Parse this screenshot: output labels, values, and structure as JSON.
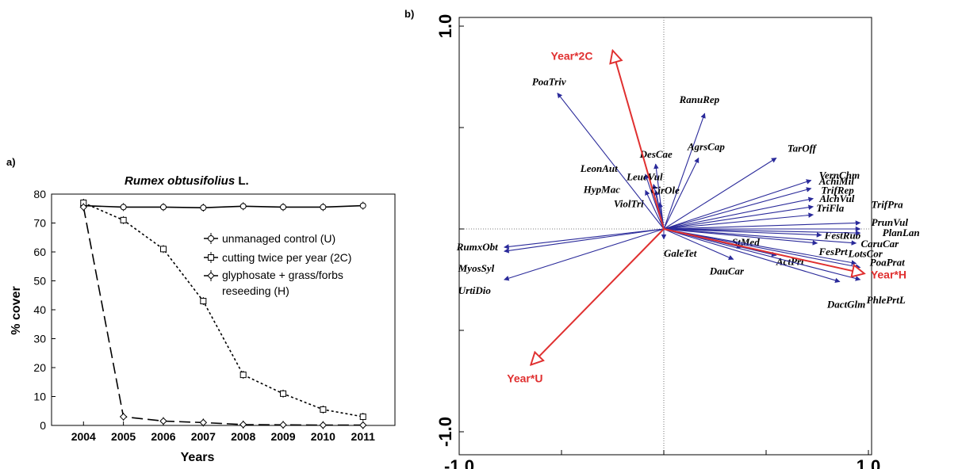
{
  "panel_a_label": "a)",
  "panel_b_label": "b)",
  "chart_data": [
    {
      "type": "line",
      "title_italic": "Rumex obtusifolius",
      "title_suffix": " L.",
      "xlabel": "Years",
      "ylabel": "% cover",
      "x": [
        2004,
        2005,
        2006,
        2007,
        2008,
        2009,
        2010,
        2011
      ],
      "xlim": [
        2003.2,
        2011.8
      ],
      "ylim": [
        0,
        80
      ],
      "yticks": [
        0,
        10,
        20,
        30,
        40,
        50,
        60,
        70,
        80
      ],
      "legend_position": "top-right",
      "series": [
        {
          "name": "unmanaged control (U)",
          "style": "solid",
          "marker": "circle",
          "values": [
            76,
            75.5,
            75.5,
            75.3,
            75.8,
            75.5,
            75.5,
            76
          ]
        },
        {
          "name": "cutting twice per year (2C)",
          "style": "dotted",
          "marker": "square",
          "values": [
            77,
            71,
            61,
            43,
            17.5,
            11,
            5.5,
            3
          ]
        },
        {
          "name": "glyphosate + grass/forbs",
          "name_line2": "reseeding (H)",
          "style": "dashed",
          "marker": "diamond",
          "values": [
            75.5,
            3,
            1.5,
            1,
            0.3,
            0.2,
            0.1,
            0.1
          ]
        }
      ]
    },
    {
      "type": "biplot",
      "xlim": [
        -1.0,
        1.0
      ],
      "ylim": [
        -1.0,
        1.0
      ],
      "xtick_labels": [
        "-1.0",
        "1.0"
      ],
      "ytick_labels": [
        "-1.0",
        "1.0"
      ],
      "env_color": "#e03030",
      "species_color": "#2a2a9a",
      "env_arrows": [
        {
          "label": "Year*2C",
          "x": -0.25,
          "y": 0.88
        },
        {
          "label": "Year*U",
          "x": -0.65,
          "y": -0.67
        },
        {
          "label": "Year*H",
          "x": 0.98,
          "y": -0.22
        }
      ],
      "species": [
        {
          "label": "PoaTriv",
          "x": -0.52,
          "y": 0.67
        },
        {
          "label": "RanuRep",
          "x": 0.2,
          "y": 0.57
        },
        {
          "label": "AgrsCap",
          "x": 0.17,
          "y": 0.35
        },
        {
          "label": "TarOff",
          "x": 0.55,
          "y": 0.35
        },
        {
          "label": "DesCae",
          "x": -0.04,
          "y": 0.32
        },
        {
          "label": "LeonAut",
          "x": -0.09,
          "y": 0.27
        },
        {
          "label": "LeucVul",
          "x": -0.05,
          "y": 0.22
        },
        {
          "label": "HypMac",
          "x": -0.09,
          "y": 0.19
        },
        {
          "label": "CirOle",
          "x": -0.04,
          "y": 0.19
        },
        {
          "label": "ViolTri",
          "x": -0.02,
          "y": 0.13
        },
        {
          "label": "VernChm",
          "x": 0.72,
          "y": 0.24
        },
        {
          "label": "AchiMil",
          "x": 0.72,
          "y": 0.2
        },
        {
          "label": "TrifRep",
          "x": 0.73,
          "y": 0.15
        },
        {
          "label": "AlchVul",
          "x": 0.73,
          "y": 0.11
        },
        {
          "label": "TriFla",
          "x": 0.73,
          "y": 0.07
        },
        {
          "label": "TrifPra",
          "x": 0.96,
          "y": 0.03
        },
        {
          "label": "PrunVul",
          "x": 0.96,
          "y": 0.0
        },
        {
          "label": "FestRub",
          "x": 0.77,
          "y": -0.03
        },
        {
          "label": "PlanLan",
          "x": 0.96,
          "y": -0.02
        },
        {
          "label": "FesPrt",
          "x": 0.75,
          "y": -0.07
        },
        {
          "label": "CaruCar",
          "x": 0.94,
          "y": -0.07
        },
        {
          "label": "StMed",
          "x": 0.38,
          "y": -0.09
        },
        {
          "label": "ActPrt",
          "x": 0.55,
          "y": -0.13
        },
        {
          "label": "LotsCor",
          "x": 0.94,
          "y": -0.17
        },
        {
          "label": "PoaPrat",
          "x": 0.96,
          "y": -0.19
        },
        {
          "label": "DauCar",
          "x": 0.34,
          "y": -0.15
        },
        {
          "label": "DactGlm",
          "x": 0.86,
          "y": -0.26
        },
        {
          "label": "PhlePrtL",
          "x": 0.96,
          "y": -0.25
        },
        {
          "label": "GaleTet",
          "x": 0.0,
          "y": -0.05
        },
        {
          "label": "RumxObt",
          "x": -0.78,
          "y": -0.09
        },
        {
          "label": "MyosSyl",
          "x": -0.78,
          "y": -0.11
        },
        {
          "label": "UrtiDio",
          "x": -0.78,
          "y": -0.25
        }
      ]
    }
  ]
}
